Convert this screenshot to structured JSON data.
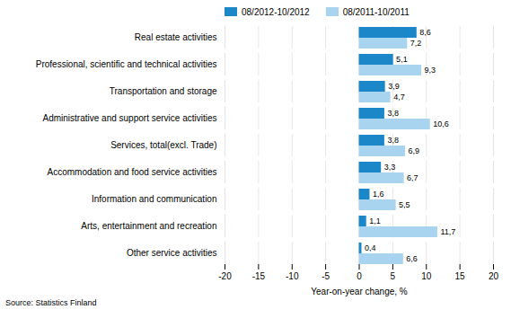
{
  "chart_data": {
    "type": "bar",
    "orientation": "horizontal",
    "categories": [
      "Real estate activities",
      "Professional, scientific and technical activities",
      "Transportation and storage",
      "Administrative and support service activities",
      "Services, total(excl. Trade)",
      "Accommodation and food service activities",
      "Information and communication",
      "Arts, entertainment and recreation",
      "Other service activities"
    ],
    "series": [
      {
        "name": "08/2012-10/2012",
        "color": "#1B86C8",
        "values": [
          8.6,
          5.1,
          3.9,
          3.8,
          3.8,
          3.3,
          1.6,
          1.1,
          0.4
        ],
        "value_labels": [
          "8,6",
          "5,1",
          "3,9",
          "3,8",
          "3,8",
          "3,3",
          "1,6",
          "1,1",
          "0,4"
        ]
      },
      {
        "name": "08/2011-10/2011",
        "color": "#A8D4F0",
        "values": [
          7.2,
          9.3,
          4.7,
          10.6,
          6.9,
          6.7,
          5.5,
          11.7,
          6.6
        ],
        "value_labels": [
          "7,2",
          "9,3",
          "4,7",
          "10,6",
          "6,9",
          "6,7",
          "5,5",
          "11,7",
          "6,6"
        ]
      }
    ],
    "xlabel": "Year-on-year change, %",
    "xlim": [
      -20,
      20
    ],
    "xticks": [
      -20,
      -15,
      -10,
      -5,
      0,
      5,
      10,
      15,
      20
    ],
    "grid": true,
    "legend": "top",
    "data_labels": true,
    "annotations": [
      "Source: Statistics Finland"
    ]
  }
}
